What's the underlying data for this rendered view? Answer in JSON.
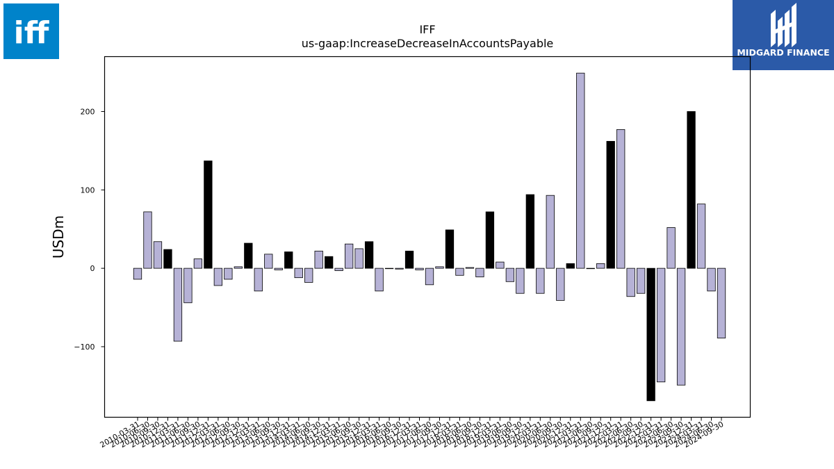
{
  "logos": {
    "left": {
      "icon": "iff-logo",
      "text": "iff",
      "color": "#0083ca"
    },
    "right": {
      "icon": "midgard-logo",
      "text": "MIDGARD FINANCE",
      "color": "#2b5aa8"
    }
  },
  "chart_data": {
    "type": "bar",
    "title": "IFF",
    "subtitle": "us-gaap:IncreaseDecreaseInAccountsPayable",
    "ylabel": "USDm",
    "xlabel": "",
    "ylim": [
      -190,
      270
    ],
    "yticks": [
      -100,
      0,
      100,
      200
    ],
    "colors": {
      "normal": "#b6b2d6",
      "highlight": "#000000",
      "edge": "#000000"
    },
    "categories": [
      "2010-03-31",
      "2010-06-30",
      "2010-09-30",
      "2010-12-31",
      "2011-03-31",
      "2011-06-30",
      "2011-09-30",
      "2011-12-31",
      "2012-03-31",
      "2012-06-30",
      "2012-09-30",
      "2012-12-31",
      "2013-03-31",
      "2013-06-30",
      "2013-09-30",
      "2013-12-31",
      "2014-03-31",
      "2014-06-30",
      "2014-09-30",
      "2014-12-31",
      "2015-03-31",
      "2015-06-30",
      "2015-09-30",
      "2015-12-31",
      "2016-03-31",
      "2016-06-30",
      "2016-09-30",
      "2016-12-31",
      "2017-03-31",
      "2017-06-30",
      "2017-09-30",
      "2017-12-31",
      "2018-03-31",
      "2018-06-30",
      "2018-09-30",
      "2018-12-31",
      "2019-03-31",
      "2019-06-30",
      "2019-09-30",
      "2019-12-31",
      "2020-03-31",
      "2020-06-30",
      "2020-09-30",
      "2020-12-31",
      "2021-03-31",
      "2021-06-30",
      "2021-09-30",
      "2021-12-31",
      "2022-03-31",
      "2022-06-30",
      "2022-09-30",
      "2022-12-31",
      "2023-03-31",
      "2023-06-30",
      "2023-09-30",
      "2023-12-31",
      "2024-03-31",
      "2024-06-30",
      "2024-09-30"
    ],
    "values": [
      -14,
      72,
      34,
      24,
      -93,
      -44,
      12,
      137,
      -22,
      -14,
      2,
      32,
      -29,
      18,
      -2,
      21,
      -12,
      -18,
      22,
      15,
      -3,
      31,
      25,
      34,
      -29,
      0,
      -1,
      22,
      -2,
      -21,
      2,
      49,
      -9,
      1,
      -11,
      72,
      8,
      -17,
      -32,
      94,
      -32,
      93,
      -41,
      6,
      249,
      0,
      6,
      162,
      177,
      -36,
      -32,
      -169,
      -145,
      52,
      -149,
      200,
      82,
      -29,
      -89
    ],
    "highlight": [
      false,
      false,
      false,
      true,
      false,
      false,
      false,
      true,
      false,
      false,
      false,
      true,
      false,
      false,
      false,
      true,
      false,
      false,
      false,
      true,
      false,
      false,
      false,
      true,
      false,
      false,
      false,
      true,
      false,
      false,
      false,
      true,
      false,
      false,
      false,
      true,
      false,
      false,
      false,
      true,
      false,
      false,
      false,
      true,
      false,
      false,
      false,
      true,
      false,
      false,
      false,
      true,
      false,
      false,
      false,
      true,
      false,
      false,
      false
    ]
  }
}
